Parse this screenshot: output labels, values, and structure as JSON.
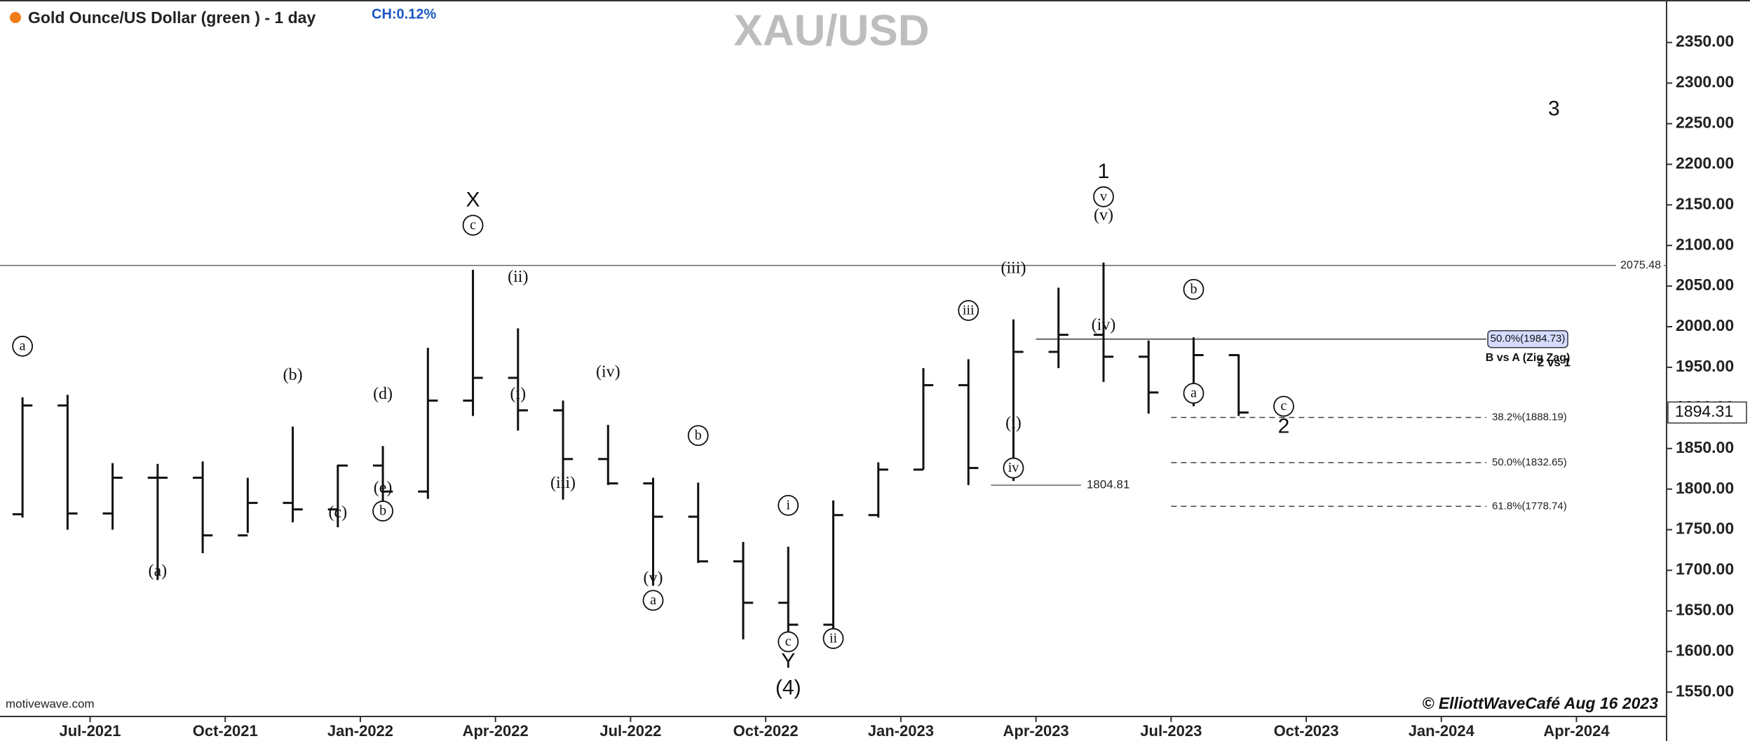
{
  "header": {
    "title": "Gold Ounce/US Dollar (green ) - 1 day",
    "change": "CH:0.12%",
    "watermark": "XAU/USD",
    "source": "motivewave.com",
    "credit": "© ElliottWaveCafé Aug 16 2023"
  },
  "chart_data": {
    "type": "ohlc",
    "color": "#111111",
    "x": [
      "2021-05",
      "2021-06",
      "2021-07",
      "2021-08",
      "2021-09",
      "2021-10",
      "2021-11",
      "2021-12",
      "2022-01",
      "2022-02",
      "2022-03",
      "2022-04",
      "2022-05",
      "2022-06",
      "2022-07",
      "2022-08",
      "2022-09",
      "2022-10",
      "2022-11",
      "2022-12",
      "2023-01",
      "2023-02",
      "2023-03",
      "2023-04",
      "2023-05",
      "2023-06",
      "2023-07",
      "2023-08"
    ],
    "open": [
      1769,
      1903,
      1770,
      1814,
      1814,
      1743,
      1783,
      1775,
      1829,
      1797,
      1909,
      1937,
      1897,
      1837,
      1807,
      1766,
      1711,
      1660,
      1633,
      1768,
      1824,
      1928,
      1826,
      1969,
      1990,
      1963,
      1919,
      1965
    ],
    "high": [
      1913,
      1916,
      1832,
      1831,
      1834,
      1814,
      1877,
      1830,
      1853,
      1974,
      2070,
      1998,
      1909,
      1879,
      1814,
      1808,
      1735,
      1729,
      1786,
      1833,
      1949,
      1960,
      2009,
      2048,
      2079,
      1983,
      1987,
      1966
    ],
    "low": [
      1765,
      1750,
      1750,
      1688,
      1721,
      1746,
      1759,
      1753,
      1780,
      1788,
      1890,
      1872,
      1787,
      1805,
      1681,
      1709,
      1615,
      1617,
      1616,
      1765,
      1824,
      1805,
      1810,
      1949,
      1932,
      1893,
      1902,
      1890
    ],
    "close": [
      1903,
      1770,
      1814,
      1814,
      1743,
      1783,
      1775,
      1829,
      1797,
      1909,
      1937,
      1897,
      1837,
      1807,
      1766,
      1711,
      1660,
      1633,
      1768,
      1824,
      1928,
      1826,
      1969,
      1990,
      1963,
      1919,
      1965,
      1894.31
    ],
    "xlim": [
      "2021-05",
      "2024-06"
    ],
    "xticks": [
      {
        "value": "2021-07",
        "label": "Jul-2021"
      },
      {
        "value": "2021-10",
        "label": "Oct-2021"
      },
      {
        "value": "2022-01",
        "label": "Jan-2022"
      },
      {
        "value": "2022-04",
        "label": "Apr-2022"
      },
      {
        "value": "2022-07",
        "label": "Jul-2022"
      },
      {
        "value": "2022-10",
        "label": "Oct-2022"
      },
      {
        "value": "2023-01",
        "label": "Jan-2023"
      },
      {
        "value": "2023-04",
        "label": "Apr-2023"
      },
      {
        "value": "2023-07",
        "label": "Jul-2023"
      },
      {
        "value": "2023-10",
        "label": "Oct-2023"
      },
      {
        "value": "2024-01",
        "label": "Jan-2024"
      },
      {
        "value": "2024-04",
        "label": "Apr-2024"
      }
    ],
    "ylim": [
      1520,
      2398
    ],
    "yticks": [
      {
        "value": 1550,
        "label": "1550.00"
      },
      {
        "value": 1600,
        "label": "1600.00"
      },
      {
        "value": 1650,
        "label": "1650.00"
      },
      {
        "value": 1700,
        "label": "1700.00"
      },
      {
        "value": 1750,
        "label": "1750.00"
      },
      {
        "value": 1800,
        "label": "1800.00"
      },
      {
        "value": 1850,
        "label": "1850.00"
      },
      {
        "value": 1900,
        "label": "1900.00"
      },
      {
        "value": 1950,
        "label": "1950.00"
      },
      {
        "value": 2000,
        "label": "2000.00"
      },
      {
        "value": 2050,
        "label": "2050.00"
      },
      {
        "value": 2100,
        "label": "2100.00"
      },
      {
        "value": 2150,
        "label": "2150.00"
      },
      {
        "value": 2200,
        "label": "2200.00"
      },
      {
        "value": 2250,
        "label": "2250.00"
      },
      {
        "value": 2300,
        "label": "2300.00"
      },
      {
        "value": 2350,
        "label": "2350.00"
      }
    ],
    "levels": [
      {
        "value": 2075.48,
        "label": "2075.48",
        "from": "2021-05",
        "to": "2024-06",
        "style": "solid",
        "label_side": "inside"
      },
      {
        "value": 1804.81,
        "label": "1804.81",
        "from": "2023-03",
        "to": "2023-05",
        "style": "solid",
        "label_side": "after"
      },
      {
        "value": 1984.73,
        "label": "50.0%(1984.73)",
        "from": "2023-04",
        "to": "2024-02",
        "style": "boxed",
        "label_side": "after",
        "note": "B vs A (Zig Zag)"
      },
      {
        "value": 1888.19,
        "label": "38.2%(1888.19)",
        "from": "2023-07",
        "to": "2024-02",
        "style": "dashed",
        "label_side": "after"
      },
      {
        "value": 1832.65,
        "label": "50.0%(1832.65)",
        "from": "2023-07",
        "to": "2024-02",
        "style": "dashed",
        "label_side": "after"
      },
      {
        "value": 1778.74,
        "label": "61.8%(1778.74)",
        "from": "2023-07",
        "to": "2024-02",
        "style": "dashed",
        "label_side": "after"
      }
    ],
    "annotations": [
      {
        "text": "a",
        "x": "2021-05",
        "y": 1976,
        "style": "circled"
      },
      {
        "text": "(a)",
        "x": "2021-08",
        "y": 1698,
        "style": "plain"
      },
      {
        "text": "(b)",
        "x": "2021-11",
        "y": 1939,
        "style": "plain"
      },
      {
        "text": "(c)",
        "x": "2021-12",
        "y": 1770,
        "style": "plain"
      },
      {
        "text": "(d)",
        "x": "2022-01",
        "y": 1916,
        "style": "plain"
      },
      {
        "text": "(e)",
        "x": "2022-01",
        "y": 1800,
        "style": "plain"
      },
      {
        "text": "b",
        "x": "2022-01",
        "y": 1773,
        "style": "circled"
      },
      {
        "text": "X",
        "x": "2022-03",
        "y": 2155,
        "style": "big"
      },
      {
        "text": "c",
        "x": "2022-03",
        "y": 2125,
        "style": "circled"
      },
      {
        "text": "(i)",
        "x": "2022-04",
        "y": 1916,
        "style": "plain"
      },
      {
        "text": "(ii)",
        "x": "2022-04",
        "y": 2060,
        "style": "plain"
      },
      {
        "text": "(iii)",
        "x": "2022-05",
        "y": 1806,
        "style": "plain"
      },
      {
        "text": "(iv)",
        "x": "2022-06",
        "y": 1943,
        "style": "plain"
      },
      {
        "text": "(v)",
        "x": "2022-07",
        "y": 1689,
        "style": "plain"
      },
      {
        "text": "a",
        "x": "2022-07",
        "y": 1663,
        "style": "circled"
      },
      {
        "text": "b",
        "x": "2022-08",
        "y": 1866,
        "style": "circled"
      },
      {
        "text": "i",
        "x": "2022-10",
        "y": 1780,
        "style": "circled"
      },
      {
        "text": "c",
        "x": "2022-10",
        "y": 1612,
        "style": "circled"
      },
      {
        "text": "Y",
        "x": "2022-10",
        "y": 1587,
        "style": "big"
      },
      {
        "text": "(4)",
        "x": "2022-10",
        "y": 1554,
        "style": "big"
      },
      {
        "text": "ii",
        "x": "2022-11",
        "y": 1616,
        "style": "circled"
      },
      {
        "text": "iii",
        "x": "2023-02",
        "y": 2020,
        "style": "circled"
      },
      {
        "text": "(i)",
        "x": "2023-03",
        "y": 1880,
        "style": "plain"
      },
      {
        "text": "iv",
        "x": "2023-03",
        "y": 1826,
        "style": "circled"
      },
      {
        "text": "(iii)",
        "x": "2023-03",
        "y": 2071,
        "style": "plain"
      },
      {
        "text": "(iv)",
        "x": "2023-05",
        "y": 2001,
        "style": "plain"
      },
      {
        "text": "(v)",
        "x": "2023-05",
        "y": 2136,
        "style": "plain"
      },
      {
        "text": "v",
        "x": "2023-05",
        "y": 2160,
        "style": "circled"
      },
      {
        "text": "1",
        "x": "2023-05",
        "y": 2190,
        "style": "big"
      },
      {
        "text": "a",
        "x": "2023-07",
        "y": 1918,
        "style": "circled"
      },
      {
        "text": "b",
        "x": "2023-07",
        "y": 2046,
        "style": "circled"
      },
      {
        "text": "c",
        "x": "2023-09",
        "y": 1902,
        "style": "circled"
      },
      {
        "text": "2",
        "x": "2023-09",
        "y": 1876,
        "style": "big"
      },
      {
        "text": "3",
        "x": "2024-03",
        "y": 2267,
        "style": "big"
      },
      {
        "text": "2 vs 1",
        "x": "2024-03",
        "y": 1955,
        "style": "note"
      }
    ]
  }
}
